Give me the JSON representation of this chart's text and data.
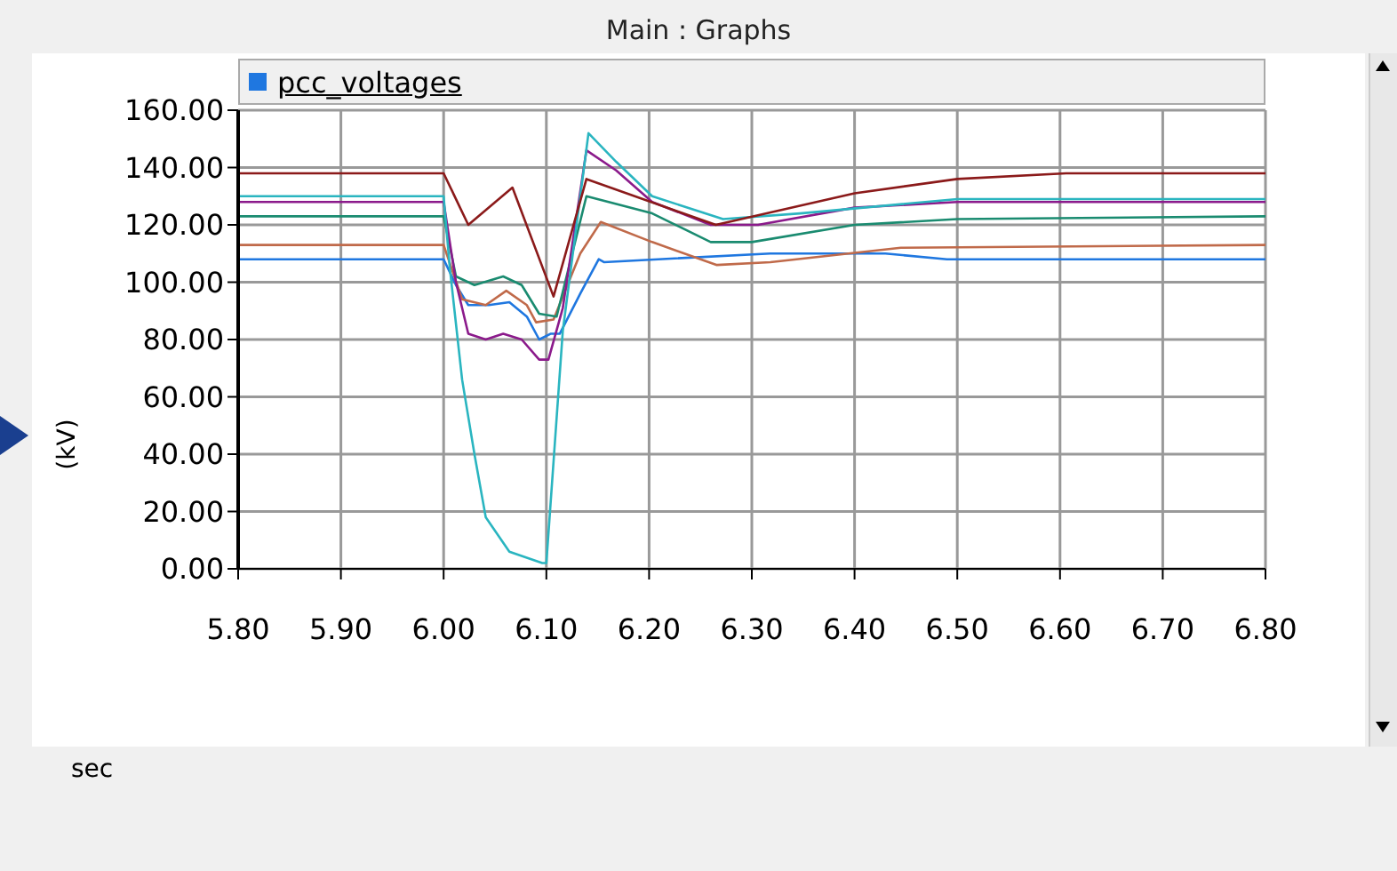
{
  "chart_data": {
    "type": "line",
    "title": "Main : Graphs",
    "legend_title": "pcc_voltages",
    "xlabel": "sec",
    "ylabel": "(kV)",
    "xlim": [
      5.8,
      6.8
    ],
    "ylim": [
      0,
      160
    ],
    "grid": true,
    "marker": "none",
    "line_style": "solid",
    "xticks": [
      {
        "value": 5.8,
        "label": "5.80"
      },
      {
        "value": 5.9,
        "label": "5.90"
      },
      {
        "value": 6.0,
        "label": "6.00"
      },
      {
        "value": 6.1,
        "label": "6.10"
      },
      {
        "value": 6.2,
        "label": "6.20"
      },
      {
        "value": 6.3,
        "label": "6.30"
      },
      {
        "value": 6.4,
        "label": "6.40"
      },
      {
        "value": 6.5,
        "label": "6.50"
      },
      {
        "value": 6.6,
        "label": "6.60"
      },
      {
        "value": 6.7,
        "label": "6.70"
      },
      {
        "value": 6.8,
        "label": "6.80"
      }
    ],
    "yticks": [
      {
        "value": 0,
        "label": "0.00"
      },
      {
        "value": 20,
        "label": "20.00"
      },
      {
        "value": 40,
        "label": "40.00"
      },
      {
        "value": 60,
        "label": "60.00"
      },
      {
        "value": 80,
        "label": "80.00"
      },
      {
        "value": 100,
        "label": "100.00"
      },
      {
        "value": 120,
        "label": "120.00"
      },
      {
        "value": 140,
        "label": "140.00"
      },
      {
        "value": 160,
        "label": "160.00"
      }
    ],
    "series": [
      {
        "color": "#1f77e0",
        "x": [
          5.8,
          6.0,
          6.012,
          6.024,
          6.044,
          6.064,
          6.081,
          6.093,
          6.104,
          6.113,
          6.133,
          6.151,
          6.156,
          6.318,
          6.43,
          6.49,
          6.8
        ],
        "values": [
          108,
          108,
          99,
          92,
          92,
          93,
          88,
          80,
          82,
          82,
          96,
          108,
          107,
          110,
          110,
          108,
          108
        ]
      },
      {
        "color": "#c06a4a",
        "x": [
          5.8,
          6.0,
          6.018,
          6.041,
          6.061,
          6.081,
          6.09,
          6.107,
          6.133,
          6.153,
          6.203,
          6.266,
          6.318,
          6.445,
          6.8
        ],
        "values": [
          113,
          113,
          94,
          92,
          97,
          92,
          86,
          87,
          110,
          121,
          114,
          106,
          107,
          112,
          113
        ]
      },
      {
        "color": "#1a8b70",
        "x": [
          5.8,
          6.0,
          6.012,
          6.03,
          6.058,
          6.076,
          6.093,
          6.11,
          6.139,
          6.203,
          6.26,
          6.3,
          6.4,
          6.5,
          6.8
        ],
        "values": [
          123,
          123,
          102,
          99,
          102,
          99,
          89,
          88,
          130,
          124,
          114,
          114,
          120,
          122,
          123
        ]
      },
      {
        "color": "#8b1a8b",
        "x": [
          5.8,
          6.0,
          6.012,
          6.024,
          6.041,
          6.058,
          6.076,
          6.093,
          6.102,
          6.116,
          6.139,
          6.168,
          6.203,
          6.26,
          6.306,
          6.4,
          6.5,
          6.8
        ],
        "values": [
          128,
          128,
          100,
          82,
          80,
          82,
          80,
          73,
          73,
          91,
          146,
          139,
          128,
          120,
          120,
          126,
          128,
          128
        ]
      },
      {
        "color": "#2ab5c0",
        "x": [
          5.8,
          6.0,
          6.006,
          6.018,
          6.03,
          6.041,
          6.064,
          6.096,
          6.1,
          6.116,
          6.141,
          6.168,
          6.203,
          6.272,
          6.347,
          6.5,
          6.8
        ],
        "values": [
          130,
          130,
          105,
          66,
          40,
          18,
          6,
          2,
          2,
          83,
          152,
          142,
          130,
          122,
          124,
          129,
          129
        ]
      },
      {
        "color": "#8b1a1a",
        "x": [
          5.8,
          6.0,
          6.024,
          6.067,
          6.107,
          6.139,
          6.265,
          6.4,
          6.5,
          6.606,
          6.8
        ],
        "values": [
          138,
          138,
          120,
          133,
          95,
          136,
          120,
          131,
          136,
          138,
          138
        ]
      }
    ]
  }
}
